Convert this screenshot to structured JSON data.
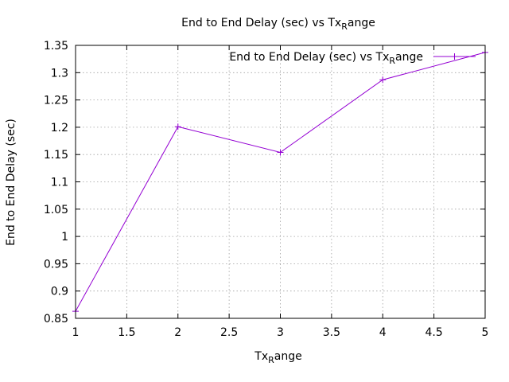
{
  "chart_data": {
    "type": "line",
    "title": {
      "main": "End to End Delay (sec) vs Tx",
      "sub": "R",
      "rest": "ange"
    },
    "xlabel": {
      "main": "Tx",
      "sub": "R",
      "rest": "ange"
    },
    "ylabel": "End to End Delay (sec)",
    "xlim": [
      1,
      5
    ],
    "ylim": [
      0.85,
      1.35
    ],
    "x_ticks": [
      "1",
      "1.5",
      "2",
      "2.5",
      "3",
      "3.5",
      "4",
      "4.5",
      "5"
    ],
    "y_ticks": [
      "0.85",
      "0.9",
      "0.95",
      "1",
      "1.05",
      "1.1",
      "1.15",
      "1.2",
      "1.25",
      "1.3",
      "1.35"
    ],
    "grid": true,
    "legend_position": "top-right",
    "series": [
      {
        "name": {
          "main": "End to End Delay (sec) vs Tx",
          "sub": "R",
          "rest": "ange"
        },
        "color": "#9400d3",
        "x": [
          1,
          2,
          3,
          4,
          5
        ],
        "y": [
          0.863,
          1.201,
          1.154,
          1.287,
          1.337
        ]
      }
    ]
  }
}
